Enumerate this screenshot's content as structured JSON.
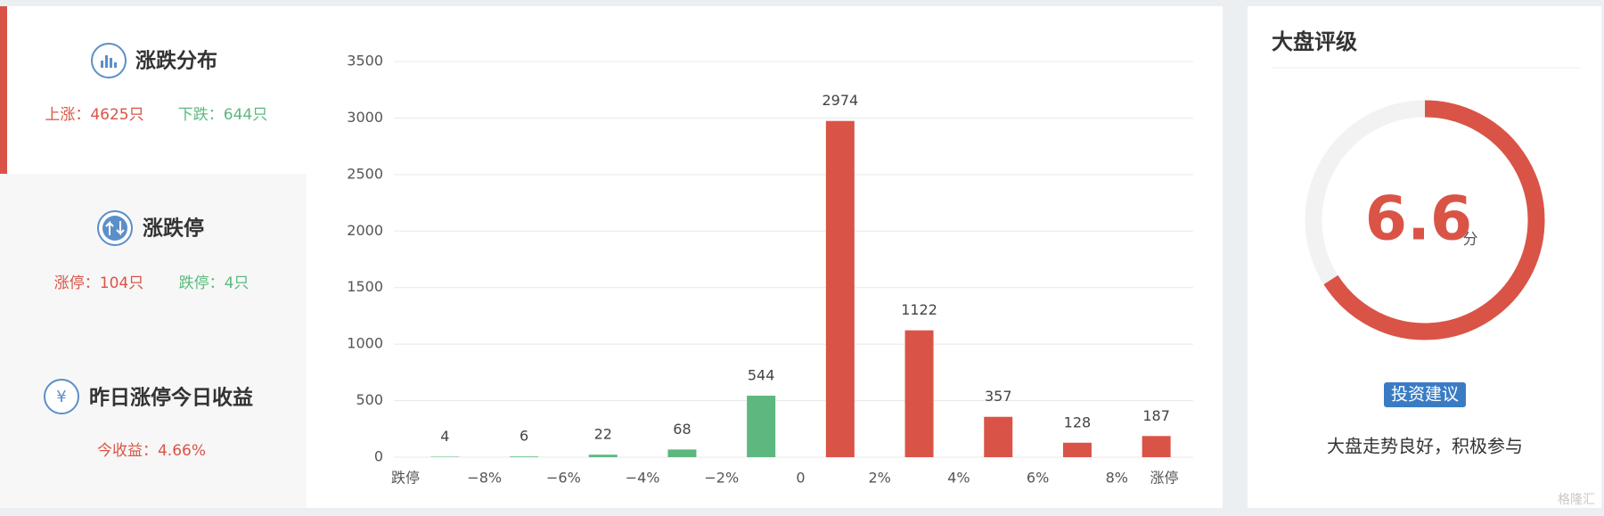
{
  "sidebar": {
    "distribution": {
      "title": "涨跌分布",
      "up": "上涨：4625只",
      "down": "下跌：644只"
    },
    "limit": {
      "title": "涨跌停",
      "up": "涨停：104只",
      "down": "跌停：4只"
    },
    "yesterday": {
      "icon": "¥",
      "title": "昨日涨停今日收益",
      "label": "今收益：4.66%"
    }
  },
  "chart_data": {
    "type": "bar",
    "bin_edge_labels": [
      "跌停",
      "−8%",
      "−6%",
      "−4%",
      "−2%",
      "0",
      "2%",
      "4%",
      "6%",
      "8%",
      "涨停"
    ],
    "values": [
      4,
      6,
      22,
      68,
      544,
      2974,
      1122,
      357,
      128,
      187
    ],
    "colors": [
      "#5cb87f",
      "#5cb87f",
      "#5cb87f",
      "#5cb87f",
      "#5cb87f",
      "#d95446",
      "#d95446",
      "#d95446",
      "#d95446",
      "#d95446"
    ],
    "ylim": [
      0,
      3500
    ],
    "yticks": [
      0,
      500,
      1000,
      1500,
      2000,
      2500,
      3000,
      3500
    ],
    "grid": true
  },
  "rating": {
    "title": "大盘评级",
    "score": 6.6,
    "unit": "分",
    "badge": "投资建议",
    "advice": "大盘走势良好，积极参与"
  },
  "watermark": "格隆汇"
}
